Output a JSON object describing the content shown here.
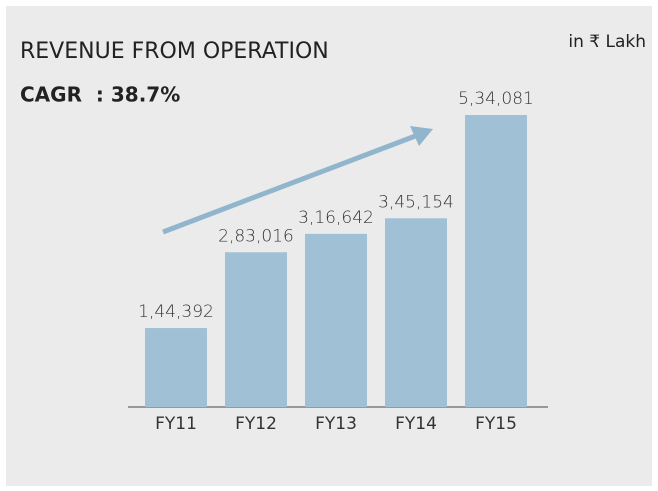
{
  "chart_data": {
    "type": "bar",
    "title": "REVENUE FROM OPERATION",
    "subtitle": "CAGR  : 38.7%",
    "unit_note": "in ₹ Lakh",
    "categories": [
      "FY11",
      "FY12",
      "FY13",
      "FY14",
      "FY15"
    ],
    "values": [
      144392,
      283016,
      316642,
      345154,
      534081
    ],
    "value_labels": [
      "1,44,392",
      "2,83,016",
      "3,16,642",
      "3,45,154",
      "5,34,081"
    ],
    "color": "#a0c0d5"
  }
}
